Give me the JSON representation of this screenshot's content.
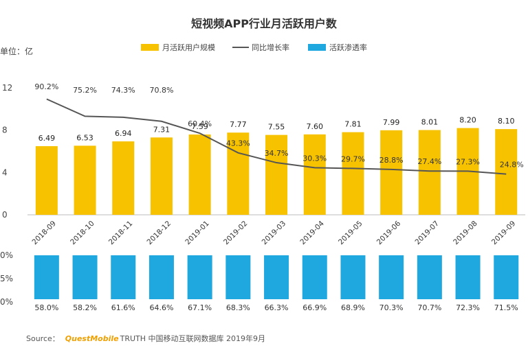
{
  "chart_data": [
    {
      "type": "bar",
      "title": "短视频APP行业月活跃用户数",
      "ylabel": "单位：亿",
      "ylim": [
        0,
        12
      ],
      "yticks": [
        "0",
        "4",
        "8",
        "12"
      ],
      "categories": [
        "2018-09",
        "2018-10",
        "2018-11",
        "2018-12",
        "2019-01",
        "2019-02",
        "2019-03",
        "2019-04",
        "2019-05",
        "2019-06",
        "2019-07",
        "2019-08",
        "2019-09"
      ],
      "series": [
        {
          "name": "月活跃用户规模",
          "type": "bar",
          "color": "#f7c200",
          "values": [
            6.49,
            6.53,
            6.94,
            7.31,
            7.59,
            7.77,
            7.55,
            7.6,
            7.81,
            7.99,
            8.01,
            8.2,
            8.1
          ],
          "labels": [
            "6.49",
            "6.53",
            "6.94",
            "7.31",
            "7.59",
            "7.77",
            "7.55",
            "7.60",
            "7.81",
            "7.99",
            "8.01",
            "8.20",
            "8.10"
          ]
        },
        {
          "name": "同比增长率",
          "type": "line",
          "color": "#555555",
          "values": [
            90.2,
            75.2,
            74.3,
            70.8,
            60.4,
            43.3,
            34.7,
            30.3,
            29.7,
            28.8,
            27.4,
            27.3,
            24.8
          ],
          "labels": [
            "90.2%",
            "75.2%",
            "74.3%",
            "70.8%",
            "60.4%",
            "43.3%",
            "34.7%",
            "30.3%",
            "29.7%",
            "28.8%",
            "27.4%",
            "27.3%",
            "24.8%"
          ]
        }
      ],
      "legend_position": "top"
    },
    {
      "type": "bar",
      "categories": [
        "2018-09",
        "2018-10",
        "2018-11",
        "2018-12",
        "2019-01",
        "2019-02",
        "2019-03",
        "2019-04",
        "2019-05",
        "2019-06",
        "2019-07",
        "2019-08",
        "2019-09"
      ],
      "yticks": [
        "0%",
        "5%",
        "0%"
      ],
      "series": [
        {
          "name": "活跃渗透率",
          "color": "#1fa8e0",
          "values": [
            58.0,
            58.2,
            61.6,
            64.6,
            67.1,
            68.3,
            66.3,
            66.9,
            68.9,
            70.3,
            70.7,
            72.3,
            71.5
          ],
          "labels": [
            "58.0%",
            "58.2%",
            "61.6%",
            "64.6%",
            "67.1%",
            "68.3%",
            "66.3%",
            "66.9%",
            "68.9%",
            "70.3%",
            "70.7%",
            "72.3%",
            "71.5%"
          ]
        }
      ]
    }
  ],
  "source": {
    "prefix": "Source：",
    "brand": "QuestMobile",
    "rest": "TRUTH 中国移动互联网数据库 2019年9月"
  }
}
